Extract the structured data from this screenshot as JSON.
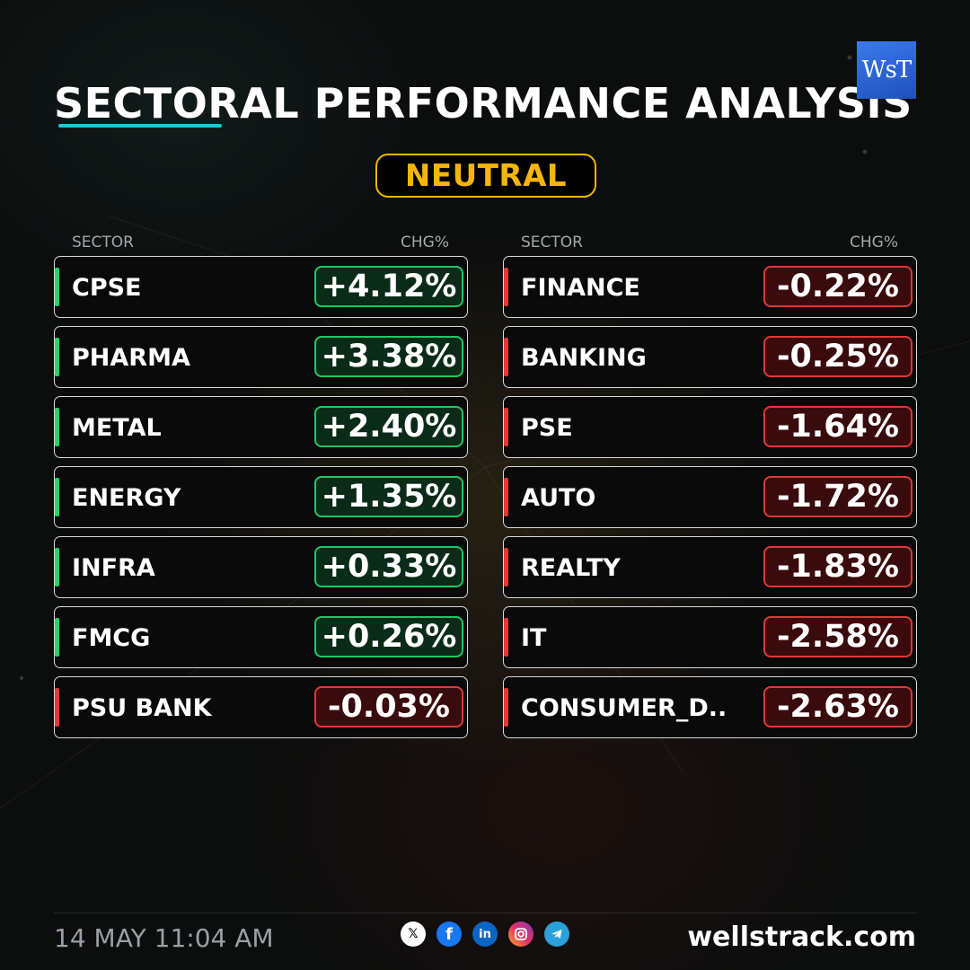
{
  "header": {
    "title": "SECTORAL PERFORMANCE ANALYSIS",
    "logo_text": "WsT",
    "sentiment": "NEUTRAL"
  },
  "columns": {
    "sector_label": "SECTOR",
    "change_label": "CHG%"
  },
  "left_sectors": [
    {
      "name": "CPSE",
      "change": "+4.12%",
      "direction": "up"
    },
    {
      "name": "PHARMA",
      "change": "+3.38%",
      "direction": "up"
    },
    {
      "name": "METAL",
      "change": "+2.40%",
      "direction": "up"
    },
    {
      "name": "ENERGY",
      "change": "+1.35%",
      "direction": "up"
    },
    {
      "name": "INFRA",
      "change": "+0.33%",
      "direction": "up"
    },
    {
      "name": "FMCG",
      "change": "+0.26%",
      "direction": "up"
    },
    {
      "name": "PSU BANK",
      "change": "-0.03%",
      "direction": "down"
    }
  ],
  "right_sectors": [
    {
      "name": "FINANCE",
      "change": "-0.22%",
      "direction": "down"
    },
    {
      "name": "BANKING",
      "change": "-0.25%",
      "direction": "down"
    },
    {
      "name": "PSE",
      "change": "-1.64%",
      "direction": "down"
    },
    {
      "name": "AUTO",
      "change": "-1.72%",
      "direction": "down"
    },
    {
      "name": "REALTY",
      "change": "-1.83%",
      "direction": "down"
    },
    {
      "name": "IT",
      "change": "-2.58%",
      "direction": "down"
    },
    {
      "name": "CONSUMER_D..",
      "change": "-2.63%",
      "direction": "down"
    }
  ],
  "footer": {
    "timestamp": "14 MAY 11:04 AM",
    "website": "wellstrack.com",
    "socials": [
      "x-icon",
      "facebook-icon",
      "linkedin-icon",
      "instagram-icon",
      "telegram-icon"
    ]
  },
  "colors": {
    "positive": "#21c665",
    "negative": "#dd3a36",
    "sentiment": "#f5b50a",
    "accent_underline": "#1ec8d8"
  }
}
